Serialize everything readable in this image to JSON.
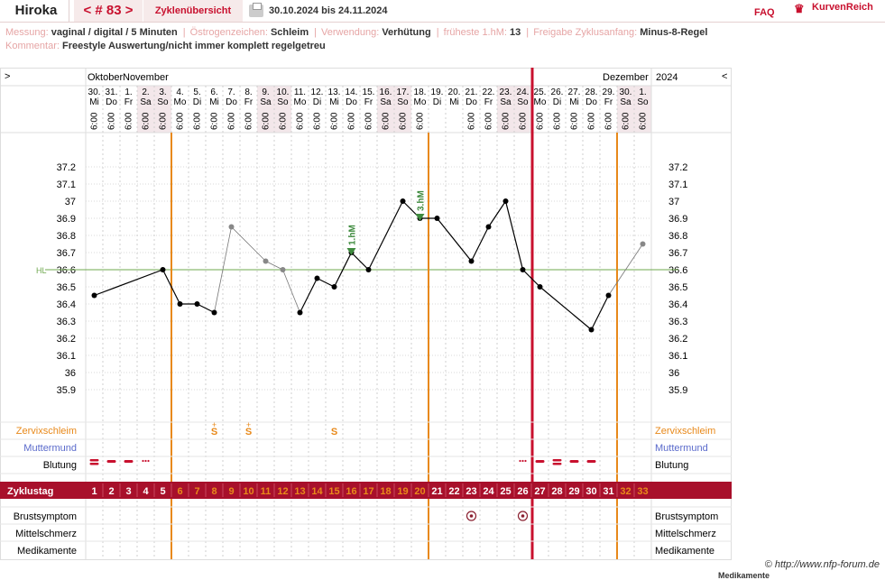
{
  "header": {
    "name": "Hiroka",
    "cycle_number": "< # 83 >",
    "overview_label": "Zyklenübersicht",
    "date_range": "30.10.2024 bis 24.11.2024",
    "faq_label": "FAQ",
    "brand_label": "KurvenReich"
  },
  "info": {
    "measurement_label": "Messung:",
    "measurement_value": "vaginal / digital / 5 Minuten",
    "estrogen_label": "Östrogenzeichen:",
    "estrogen_value": "Schleim",
    "usage_label": "Verwendung:",
    "usage_value": "Verhütung",
    "earliest_label": "früheste 1.hM:",
    "earliest_value": "13",
    "release_label": "Freigabe Zyklusanfang:",
    "release_value": "Minus-8-Regel",
    "comment_label": "Kommentar:",
    "comment_value": "Freestyle Auswertung/nicht immer komplett regelgetreu"
  },
  "colors": {
    "accent": "#c8102e",
    "band": "#a8102b",
    "orange": "#e8891a",
    "hl_line": "#6fa84f",
    "grid": "#d9d9d9",
    "shade": "#f3e7ea",
    "muttermund": "#5a6acb",
    "peak_marker": "#3e8a3e"
  },
  "chart_data": {
    "type": "line",
    "title": "",
    "ylabel": "",
    "ylim": [
      35.8,
      37.3
    ],
    "yticks": [
      "37.2",
      "37.1",
      "37",
      "36.9",
      "36.8",
      "36.7",
      "36.6",
      "36.5",
      "36.4",
      "36.3",
      "36.2",
      "36.1",
      "36",
      "35.9"
    ],
    "ytick_values": [
      37.2,
      37.1,
      37.0,
      36.9,
      36.8,
      36.7,
      36.6,
      36.5,
      36.4,
      36.3,
      36.2,
      36.1,
      36.0,
      35.9
    ],
    "nav_prev": ">",
    "nav_next": "<",
    "months": [
      "Oktober",
      "November",
      "Dezember"
    ],
    "year": "2024",
    "dates": [
      "30.",
      "31.",
      "1.",
      "2.",
      "3.",
      "4.",
      "5.",
      "6.",
      "7.",
      "8.",
      "9.",
      "10.",
      "11.",
      "12.",
      "13.",
      "14.",
      "15.",
      "16.",
      "17.",
      "18.",
      "19.",
      "20.",
      "21.",
      "22.",
      "23.",
      "24.",
      "25.",
      "26.",
      "27.",
      "28.",
      "29.",
      "30.",
      "1."
    ],
    "weekdays": [
      "Mi",
      "Do",
      "Fr",
      "Sa",
      "So",
      "Mo",
      "Di",
      "Mi",
      "Do",
      "Fr",
      "Sa",
      "So",
      "Mo",
      "Di",
      "Mi",
      "Do",
      "Fr",
      "Sa",
      "So",
      "Mo",
      "Di",
      "Mi",
      "Do",
      "Fr",
      "Sa",
      "So",
      "Mo",
      "Di",
      "Mi",
      "Do",
      "Fr",
      "Sa",
      "So"
    ],
    "weekend": [
      false,
      false,
      false,
      true,
      true,
      false,
      false,
      false,
      false,
      false,
      true,
      true,
      false,
      false,
      false,
      false,
      false,
      true,
      true,
      false,
      false,
      false,
      false,
      false,
      true,
      true,
      false,
      false,
      false,
      false,
      false,
      true,
      true
    ],
    "times": [
      "6:00",
      "6:00",
      "6:00",
      "6:00",
      "6:00",
      "6:00",
      "6:00",
      "6:00",
      "6:00",
      "6:00",
      "6:00",
      "6:00",
      "6:00",
      "6:00",
      "6:00",
      "6:00",
      "6:00",
      "6:00",
      "6:00",
      "6:00",
      "",
      "",
      "6:00",
      "6:00",
      "6:00",
      "6:00",
      "6:00",
      "6:00",
      "6:00",
      "6:00",
      "6:00",
      "6:00",
      "6:00"
    ],
    "cycle_days": [
      "1",
      "2",
      "3",
      "4",
      "5",
      "6",
      "7",
      "8",
      "9",
      "10",
      "11",
      "12",
      "13",
      "14",
      "15",
      "16",
      "17",
      "18",
      "19",
      "20",
      "21",
      "22",
      "23",
      "24",
      "25",
      "26",
      "27",
      "28",
      "29",
      "30",
      "31",
      "32",
      "33"
    ],
    "cycle_day_label": "Zyklustag",
    "series": [
      {
        "values": [
          36.45,
          null,
          null,
          null,
          36.6,
          36.4,
          36.4,
          36.35,
          36.85,
          null,
          36.65,
          36.6,
          36.35,
          36.55,
          36.5,
          36.7,
          36.6,
          null,
          37.0,
          36.9,
          36.9,
          null,
          36.65,
          36.85,
          37.0,
          36.6,
          36.5,
          null,
          null,
          36.25,
          36.45,
          null,
          36.75
        ],
        "excluded": [
          false,
          false,
          false,
          false,
          false,
          false,
          false,
          false,
          true,
          false,
          true,
          true,
          false,
          false,
          false,
          false,
          false,
          false,
          false,
          false,
          false,
          false,
          false,
          false,
          false,
          false,
          false,
          false,
          false,
          false,
          false,
          false,
          true
        ]
      }
    ],
    "hl_label": "HL",
    "hl_value": 36.6,
    "markers": [
      {
        "label": "1.hM",
        "day": 16,
        "value": 36.7
      },
      {
        "label": "3.hM",
        "day": 20,
        "value": 36.9
      }
    ],
    "cycle_end_day": 26.5,
    "orange_verticals": [
      5.5,
      20.5,
      31.5
    ],
    "rows": {
      "cervix_label": "Zervixschleim",
      "cervix_marks": [
        {
          "day": 8,
          "text": "S",
          "plus": true
        },
        {
          "day": 10,
          "text": "S",
          "plus": true
        },
        {
          "day": 15,
          "text": "S",
          "plus": false
        }
      ],
      "cervix_plus": "+",
      "muttermund_label": "Muttermund",
      "bleeding_label": "Blutung",
      "bleeding_marks": [
        {
          "day": 1,
          "level": "heavy"
        },
        {
          "day": 2,
          "level": "medium"
        },
        {
          "day": 3,
          "level": "medium"
        },
        {
          "day": 4,
          "level": "spotting"
        },
        {
          "day": 26,
          "level": "spotting"
        },
        {
          "day": 27,
          "level": "medium"
        },
        {
          "day": 28,
          "level": "heavy"
        },
        {
          "day": 29,
          "level": "medium"
        },
        {
          "day": 30,
          "level": "medium"
        }
      ],
      "breast_label": "Brustsymptom",
      "breast_marks": [
        23,
        26
      ],
      "mittelschmerz_label": "Mittelschmerz",
      "medication_label": "Medikamente"
    }
  },
  "footer": {
    "copyright": "© http://www.nfp-forum.de",
    "cutoff_text": "Medikamente"
  }
}
